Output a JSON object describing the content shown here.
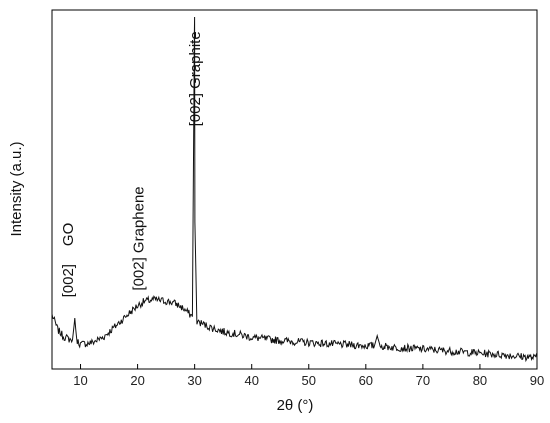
{
  "chart_data": {
    "type": "line",
    "xlabel": "2θ (°)",
    "ylabel": "Intensity (a.u.)",
    "xlim": [
      5,
      90
    ],
    "ylim": [
      0,
      100
    ],
    "x_ticks": [
      10,
      20,
      30,
      40,
      50,
      60,
      70,
      80,
      90
    ],
    "y_ticks_shown": false,
    "grid": false,
    "series": [
      {
        "x": [
          5,
          6,
          7,
          8,
          8.6,
          9,
          9.3,
          10,
          12,
          14,
          16,
          18,
          20,
          21,
          22,
          23,
          24,
          25,
          26,
          27,
          28,
          29,
          29.6,
          29.95,
          30,
          30.05,
          30.4,
          31,
          32,
          33,
          34,
          35,
          38,
          40,
          45,
          50,
          55,
          60,
          61.5,
          62,
          62.5,
          65,
          70,
          75,
          80,
          85,
          90
        ],
        "y": [
          13,
          8.6,
          6.6,
          5.8,
          5.6,
          12,
          5.6,
          4.3,
          4.8,
          6.4,
          9.4,
          12.6,
          15.6,
          16.7,
          17.1,
          17.4,
          17.1,
          16.9,
          16.6,
          15.9,
          14.8,
          13.3,
          12.4,
          96,
          100,
          40,
          10.9,
          10.6,
          9.8,
          9.1,
          8.6,
          8.0,
          7.1,
          6.3,
          5.4,
          4.8,
          4.3,
          3.9,
          3.8,
          6.8,
          3.8,
          3.4,
          2.9,
          2.3,
          1.7,
          1.1,
          0.3
        ]
      }
    ],
    "annotations": [
      {
        "text": "[002]",
        "x": 8.7,
        "y": 18
      },
      {
        "text": "GO",
        "x": 8.7,
        "y": 33
      },
      {
        "text": "[002] Graphene",
        "x": 21,
        "y": 20
      },
      {
        "text": "[002] Graphite",
        "x": 30.9,
        "y": 68
      }
    ]
  }
}
